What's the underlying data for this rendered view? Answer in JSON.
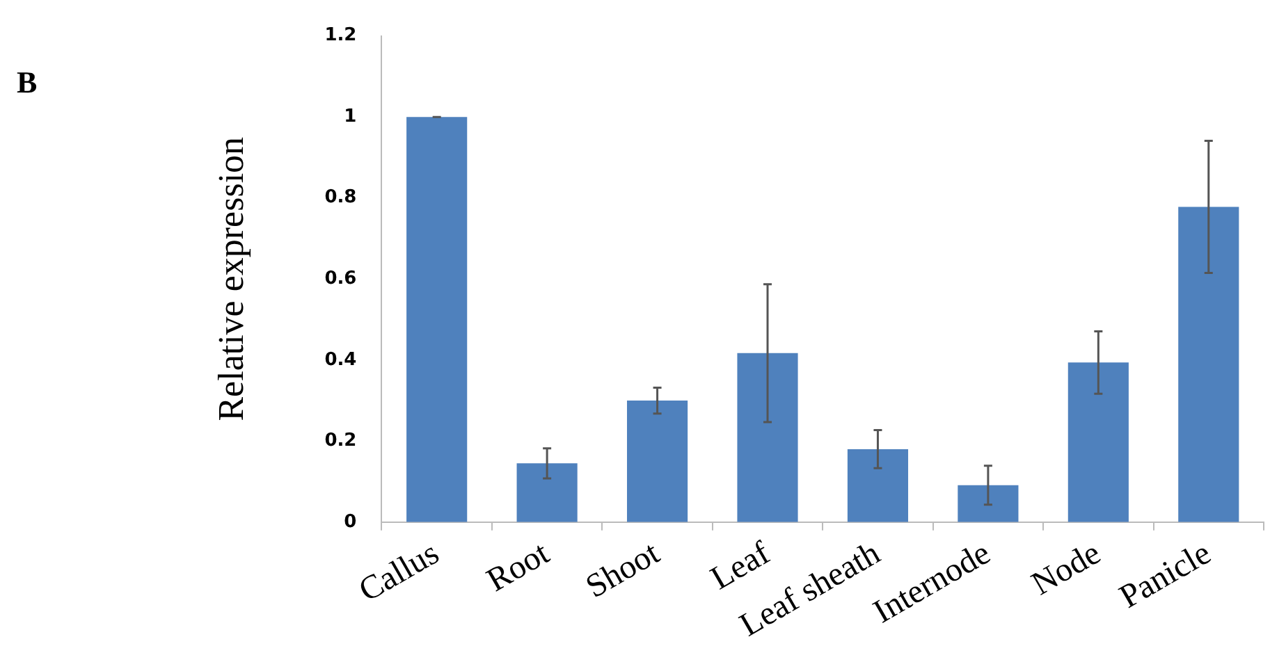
{
  "chart_data": {
    "type": "bar",
    "ylabel": "Relative expression",
    "annotations": [
      "B"
    ],
    "categories": [
      "Callus",
      "Root",
      "Shoot",
      "Leaf",
      "Leaf sheath",
      "Internode",
      "Node",
      "Panicle"
    ],
    "values": [
      1.0,
      0.145,
      0.3,
      0.417,
      0.18,
      0.091,
      0.394,
      0.778
    ],
    "errors": [
      0,
      0.037,
      0.032,
      0.17,
      0.047,
      0.048,
      0.077,
      0.163
    ],
    "color": "#4f81bd",
    "ylim": [
      0,
      1.2
    ],
    "yticks": [
      0,
      0.2,
      0.4,
      0.6,
      0.8,
      1,
      1.2
    ]
  }
}
